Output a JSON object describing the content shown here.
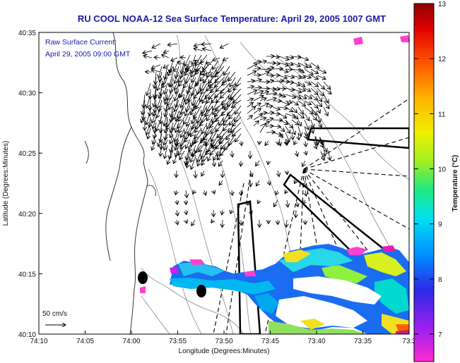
{
  "title": "RU COOL  NOAA-12  Sea Surface Temperature:  April 29, 2005 1007 GMT",
  "annotation": {
    "line1": "Raw Surface Current:",
    "line2": "April 29, 2005 09:00 GMT"
  },
  "scale_label": "50 cm/s",
  "axes": {
    "x_label": "Longitude (Degrees:Minutes)",
    "y_label": "Latitude (Degrees:Minutes)",
    "x_ticks": [
      "74:10",
      "74:05",
      "74:00",
      "73:55",
      "73:50",
      "73:45",
      "73:40",
      "73:35",
      "73:3"
    ],
    "y_ticks": [
      "40:35",
      "40:30",
      "40:25",
      "40:20",
      "40:15",
      "40:10"
    ]
  },
  "colorbar": {
    "label": "Temperature (°C)",
    "ticks": [
      "13",
      "12",
      "11",
      "10",
      "9",
      "8",
      "7"
    ],
    "range": [
      6.5,
      13
    ],
    "colors": [
      "#ff2ad0",
      "#a020f0",
      "#2a2ae8",
      "#0090ff",
      "#00e0f0",
      "#20e880",
      "#a0f020",
      "#f0f000",
      "#ffb000",
      "#ff5000",
      "#e00000",
      "#900000"
    ]
  }
}
